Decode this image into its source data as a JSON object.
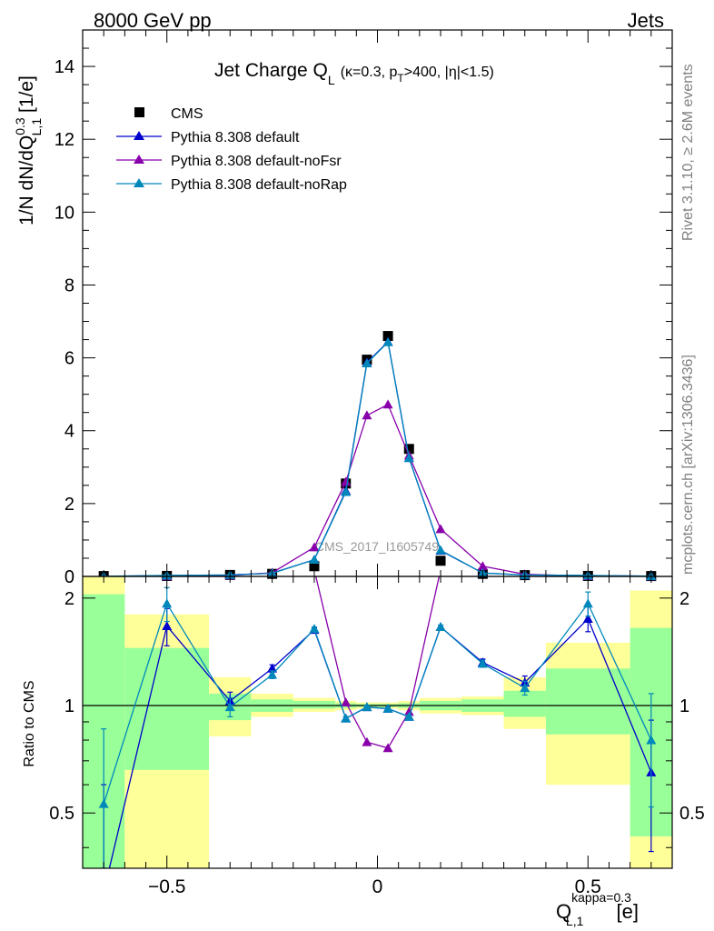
{
  "header": {
    "energy": "8000 GeV pp",
    "category": "Jets"
  },
  "side": {
    "rivet": "Rivet 3.1.10, ≥ 2.6M events",
    "source": "mcplots.cern.ch [arXiv:1306.3436]"
  },
  "chart_data": {
    "type": "line",
    "title": {
      "main": "Jet Charge Q",
      "main_sub": "L",
      "paren_open": "(κ=0.3, p",
      "paren_sub": "T",
      "paren_close": ">400, |η|<1.5)"
    },
    "watermark": "CMS_2017_I1605749",
    "ylabel": {
      "pre": "1/N dN/dQ",
      "sup": "0.3",
      "sub": "L,1",
      "post": " [1/e]"
    },
    "xlabel": {
      "main": "Q",
      "sup": "kappa=0.3",
      "sub": "L,1",
      "post": " [e]"
    },
    "ratio_ylabel": "Ratio to CMS",
    "xlim": [
      -0.7,
      0.7
    ],
    "ylim": [
      0,
      15
    ],
    "ratio_ylim": [
      0.35,
      2.3
    ],
    "xticks": [
      {
        "v": -0.5,
        "label": "−0.5"
      },
      {
        "v": 0,
        "label": "0"
      },
      {
        "v": 0.5,
        "label": "0.5"
      }
    ],
    "yticks": [
      {
        "v": 0,
        "label": "0"
      },
      {
        "v": 2,
        "label": "2"
      },
      {
        "v": 4,
        "label": "4"
      },
      {
        "v": 6,
        "label": "6"
      },
      {
        "v": 8,
        "label": "8"
      },
      {
        "v": 10,
        "label": "10"
      },
      {
        "v": 12,
        "label": "12"
      },
      {
        "v": 14,
        "label": "14"
      }
    ],
    "ratio_yticks": [
      {
        "v": 0.5,
        "label": "0.5"
      },
      {
        "v": 1,
        "label": "1"
      },
      {
        "v": 2,
        "label": "2"
      }
    ],
    "bins": [
      {
        "lo": -0.7,
        "hi": -0.6,
        "x": -0.65,
        "y": 0.01,
        "g": [
          0.35,
          2.05
        ],
        "yl": [
          0.35,
          2.3
        ]
      },
      {
        "lo": -0.6,
        "hi": -0.4,
        "x": -0.5,
        "y": 0.014,
        "g": [
          0.66,
          1.45
        ],
        "yl": [
          0.35,
          1.8
        ]
      },
      {
        "lo": -0.4,
        "hi": -0.3,
        "x": -0.35,
        "y": 0.04,
        "g": [
          0.91,
          1.08
        ],
        "yl": [
          0.82,
          1.2
        ]
      },
      {
        "lo": -0.3,
        "hi": -0.2,
        "x": -0.25,
        "y": 0.07,
        "g": [
          0.96,
          1.04
        ],
        "yl": [
          0.93,
          1.08
        ]
      },
      {
        "lo": -0.2,
        "hi": -0.1,
        "x": -0.15,
        "y": 0.28,
        "g": [
          0.98,
          1.03
        ],
        "yl": [
          0.96,
          1.05
        ]
      },
      {
        "lo": -0.1,
        "hi": -0.05,
        "x": -0.075,
        "y": 2.55,
        "g": [
          0.985,
          1.015
        ],
        "yl": [
          0.97,
          1.03
        ]
      },
      {
        "lo": -0.05,
        "hi": 0.0,
        "x": -0.025,
        "y": 5.95,
        "g": [
          0.99,
          1.01
        ],
        "yl": [
          0.98,
          1.02
        ]
      },
      {
        "lo": 0.0,
        "hi": 0.05,
        "x": 0.025,
        "y": 6.6,
        "g": [
          0.99,
          1.01
        ],
        "yl": [
          0.98,
          1.02
        ]
      },
      {
        "lo": 0.05,
        "hi": 0.1,
        "x": 0.075,
        "y": 3.5,
        "g": [
          0.985,
          1.015
        ],
        "yl": [
          0.97,
          1.03
        ]
      },
      {
        "lo": 0.1,
        "hi": 0.2,
        "x": 0.15,
        "y": 0.43,
        "g": [
          0.97,
          1.03
        ],
        "yl": [
          0.95,
          1.05
        ]
      },
      {
        "lo": 0.2,
        "hi": 0.3,
        "x": 0.25,
        "y": 0.07,
        "g": [
          0.96,
          1.04
        ],
        "yl": [
          0.94,
          1.06
        ]
      },
      {
        "lo": 0.3,
        "hi": 0.4,
        "x": 0.35,
        "y": 0.035,
        "g": [
          0.93,
          1.1
        ],
        "yl": [
          0.86,
          1.2
        ]
      },
      {
        "lo": 0.4,
        "hi": 0.6,
        "x": 0.5,
        "y": 0.014,
        "g": [
          0.83,
          1.27
        ],
        "yl": [
          0.6,
          1.5
        ]
      },
      {
        "lo": 0.6,
        "hi": 0.7,
        "x": 0.65,
        "y": 0.01,
        "g": [
          0.43,
          1.65
        ],
        "yl": [
          0.35,
          2.1
        ]
      }
    ],
    "series": [
      {
        "name": "CMS",
        "marker": "square",
        "color": "#000000",
        "x": [
          -0.65,
          -0.5,
          -0.35,
          -0.25,
          -0.15,
          -0.075,
          -0.025,
          0.025,
          0.075,
          0.15,
          0.25,
          0.35,
          0.5,
          0.65
        ],
        "y": [
          0.01,
          0.014,
          0.04,
          0.07,
          0.28,
          2.55,
          5.95,
          6.6,
          3.5,
          0.43,
          0.07,
          0.035,
          0.014,
          0.01
        ]
      },
      {
        "name": "Pythia 8.308 default",
        "marker": "triangle",
        "color": "#0000cc",
        "x": [
          -0.65,
          -0.5,
          -0.35,
          -0.25,
          -0.15,
          -0.075,
          -0.025,
          0.025,
          0.075,
          0.15,
          0.25,
          0.35,
          0.5,
          0.65
        ],
        "y": [
          0.003,
          0.023,
          0.041,
          0.09,
          0.46,
          2.35,
          5.87,
          6.44,
          3.25,
          0.71,
          0.093,
          0.041,
          0.024,
          0.0065
        ],
        "ratio": [
          0.3,
          1.67,
          1.03,
          1.27,
          1.63,
          0.92,
          0.99,
          0.98,
          0.93,
          1.66,
          1.32,
          1.16,
          1.75,
          0.65
        ],
        "ratio_err": [
          0.3,
          0.2,
          0.06,
          0.03,
          0.02,
          0.01,
          0.01,
          0.01,
          0.01,
          0.02,
          0.03,
          0.05,
          0.14,
          0.26
        ]
      },
      {
        "name": "Pythia 8.308 default-noFsr",
        "marker": "triangle",
        "color": "#8800aa",
        "x": [
          -0.65,
          -0.5,
          -0.35,
          -0.25,
          -0.15,
          -0.075,
          -0.025,
          0.025,
          0.075,
          0.15,
          0.25,
          0.35,
          0.5,
          0.65
        ],
        "y": [
          0.004,
          0.006,
          0.025,
          0.1,
          0.8,
          2.6,
          4.42,
          4.72,
          3.32,
          1.3,
          0.28,
          0.06,
          0.01,
          0.004
        ],
        "ratio": [
          2.4,
          2.4,
          2.4,
          2.4,
          2.4,
          1.02,
          0.79,
          0.76,
          0.96,
          2.4,
          2.4,
          2.4,
          2.4,
          2.4
        ],
        "ratio_err": [
          0,
          0,
          0,
          0,
          0,
          0,
          0,
          0,
          0,
          0,
          0,
          0,
          0,
          0
        ]
      },
      {
        "name": "Pythia 8.308 default-noRap",
        "marker": "triangle",
        "color": "#0088bb",
        "x": [
          -0.65,
          -0.5,
          -0.35,
          -0.25,
          -0.15,
          -0.075,
          -0.025,
          0.025,
          0.075,
          0.15,
          0.25,
          0.35,
          0.5,
          0.65
        ],
        "y": [
          0.005,
          0.027,
          0.04,
          0.085,
          0.46,
          2.32,
          5.85,
          6.43,
          3.25,
          0.72,
          0.092,
          0.04,
          0.027,
          0.008
        ],
        "ratio": [
          0.53,
          1.93,
          0.99,
          1.22,
          1.64,
          0.92,
          0.99,
          0.98,
          0.93,
          1.66,
          1.31,
          1.12,
          1.93,
          0.8
        ],
        "ratio_err": [
          0.33,
          0.21,
          0.06,
          0.03,
          0.02,
          0.01,
          0.01,
          0.01,
          0.01,
          0.02,
          0.03,
          0.05,
          0.15,
          0.28
        ]
      }
    ],
    "colors": {
      "band_green": "#99ff99",
      "band_yellow": "#ffff99"
    }
  }
}
